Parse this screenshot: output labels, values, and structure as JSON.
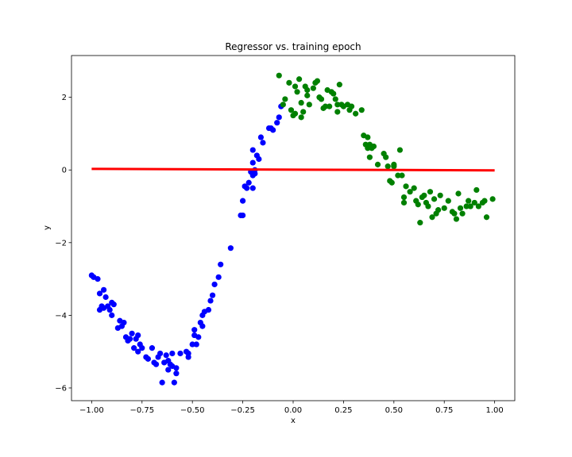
{
  "chart_data": {
    "type": "scatter",
    "title": "Regressor vs. training epoch",
    "xlabel": "x",
    "ylabel": "y",
    "xlim": [
      -1.1,
      1.1
    ],
    "ylim": [
      -6.35,
      3.15
    ],
    "xticks": [
      -1.0,
      -0.75,
      -0.5,
      -0.25,
      0.0,
      0.25,
      0.5,
      0.75,
      1.0
    ],
    "xtick_labels": [
      "−1.00",
      "−0.75",
      "−0.50",
      "−0.25",
      "0.00",
      "0.25",
      "0.50",
      "0.75",
      "1.00"
    ],
    "yticks": [
      -6,
      -4,
      -2,
      0,
      2
    ],
    "ytick_labels": [
      "−6",
      "−4",
      "−2",
      "0",
      "2"
    ],
    "grid": false,
    "series": [
      {
        "color": "#0000ff",
        "points": [
          [
            -1.0,
            -2.9
          ],
          [
            -0.99,
            -2.95
          ],
          [
            -0.97,
            -3.0
          ],
          [
            -0.96,
            -3.4
          ],
          [
            -0.95,
            -3.75
          ],
          [
            -0.96,
            -3.85
          ],
          [
            -0.94,
            -3.8
          ],
          [
            -0.94,
            -3.3
          ],
          [
            -0.93,
            -3.5
          ],
          [
            -0.92,
            -3.75
          ],
          [
            -0.91,
            -3.85
          ],
          [
            -0.9,
            -4.0
          ],
          [
            -0.9,
            -3.65
          ],
          [
            -0.89,
            -3.7
          ],
          [
            -0.87,
            -4.35
          ],
          [
            -0.86,
            -4.15
          ],
          [
            -0.85,
            -4.3
          ],
          [
            -0.84,
            -4.2
          ],
          [
            -0.83,
            -4.6
          ],
          [
            -0.82,
            -4.7
          ],
          [
            -0.81,
            -4.65
          ],
          [
            -0.8,
            -4.5
          ],
          [
            -0.79,
            -4.9
          ],
          [
            -0.78,
            -4.65
          ],
          [
            -0.77,
            -4.55
          ],
          [
            -0.77,
            -5.0
          ],
          [
            -0.76,
            -4.8
          ],
          [
            -0.75,
            -4.9
          ],
          [
            -0.73,
            -5.15
          ],
          [
            -0.72,
            -5.2
          ],
          [
            -0.7,
            -4.9
          ],
          [
            -0.69,
            -5.3
          ],
          [
            -0.68,
            -5.35
          ],
          [
            -0.67,
            -5.15
          ],
          [
            -0.66,
            -5.05
          ],
          [
            -0.65,
            -5.85
          ],
          [
            -0.64,
            -5.3
          ],
          [
            -0.63,
            -5.1
          ],
          [
            -0.62,
            -5.25
          ],
          [
            -0.62,
            -5.5
          ],
          [
            -0.61,
            -5.35
          ],
          [
            -0.6,
            -5.05
          ],
          [
            -0.6,
            -5.4
          ],
          [
            -0.59,
            -5.85
          ],
          [
            -0.58,
            -5.6
          ],
          [
            -0.58,
            -5.45
          ],
          [
            -0.56,
            -5.05
          ],
          [
            -0.53,
            -5.0
          ],
          [
            -0.52,
            -5.05
          ],
          [
            -0.52,
            -5.15
          ],
          [
            -0.5,
            -4.8
          ],
          [
            -0.49,
            -4.55
          ],
          [
            -0.49,
            -4.4
          ],
          [
            -0.48,
            -4.8
          ],
          [
            -0.47,
            -4.6
          ],
          [
            -0.46,
            -4.2
          ],
          [
            -0.45,
            -4.3
          ],
          [
            -0.45,
            -4.0
          ],
          [
            -0.44,
            -3.9
          ],
          [
            -0.42,
            -3.85
          ],
          [
            -0.41,
            -3.6
          ],
          [
            -0.4,
            -3.45
          ],
          [
            -0.39,
            -3.15
          ],
          [
            -0.37,
            -2.95
          ],
          [
            -0.36,
            -2.6
          ],
          [
            -0.31,
            -2.15
          ],
          [
            -0.26,
            -1.25
          ],
          [
            -0.25,
            -0.85
          ],
          [
            -0.25,
            -1.25
          ],
          [
            -0.24,
            -0.45
          ],
          [
            -0.23,
            -0.5
          ],
          [
            -0.22,
            -0.35
          ],
          [
            -0.21,
            -0.05
          ],
          [
            -0.2,
            -0.15
          ],
          [
            -0.2,
            0.2
          ],
          [
            -0.2,
            -0.5
          ],
          [
            -0.19,
            -0.1
          ],
          [
            -0.19,
            0.0
          ],
          [
            -0.2,
            0.55
          ],
          [
            -0.18,
            0.4
          ],
          [
            -0.17,
            0.3
          ],
          [
            -0.16,
            0.9
          ],
          [
            -0.15,
            0.75
          ],
          [
            -0.12,
            1.15
          ],
          [
            -0.11,
            1.15
          ],
          [
            -0.1,
            1.1
          ],
          [
            -0.08,
            1.3
          ],
          [
            -0.07,
            1.45
          ],
          [
            -0.06,
            1.75
          ]
        ]
      },
      {
        "color": "#008000",
        "points": [
          [
            -0.07,
            2.6
          ],
          [
            -0.05,
            1.8
          ],
          [
            -0.04,
            1.95
          ],
          [
            -0.02,
            2.4
          ],
          [
            -0.01,
            1.65
          ],
          [
            0.0,
            1.5
          ],
          [
            0.01,
            1.55
          ],
          [
            0.01,
            2.3
          ],
          [
            0.02,
            2.15
          ],
          [
            0.03,
            2.5
          ],
          [
            0.04,
            1.85
          ],
          [
            0.04,
            1.45
          ],
          [
            0.05,
            1.6
          ],
          [
            0.06,
            2.3
          ],
          [
            0.07,
            2.2
          ],
          [
            0.07,
            2.05
          ],
          [
            0.08,
            1.8
          ],
          [
            0.1,
            2.25
          ],
          [
            0.11,
            2.4
          ],
          [
            0.12,
            2.45
          ],
          [
            0.13,
            2.0
          ],
          [
            0.14,
            1.95
          ],
          [
            0.15,
            1.7
          ],
          [
            0.16,
            1.75
          ],
          [
            0.17,
            2.2
          ],
          [
            0.18,
            1.75
          ],
          [
            0.19,
            2.15
          ],
          [
            0.2,
            2.1
          ],
          [
            0.21,
            1.95
          ],
          [
            0.22,
            1.8
          ],
          [
            0.22,
            1.6
          ],
          [
            0.23,
            2.35
          ],
          [
            0.24,
            1.8
          ],
          [
            0.25,
            1.75
          ],
          [
            0.27,
            1.8
          ],
          [
            0.28,
            1.65
          ],
          [
            0.29,
            1.75
          ],
          [
            0.31,
            1.55
          ],
          [
            0.34,
            1.65
          ],
          [
            0.35,
            0.95
          ],
          [
            0.36,
            0.7
          ],
          [
            0.37,
            0.9
          ],
          [
            0.37,
            0.6
          ],
          [
            0.38,
            0.7
          ],
          [
            0.38,
            0.35
          ],
          [
            0.39,
            0.6
          ],
          [
            0.4,
            0.65
          ],
          [
            0.42,
            0.15
          ],
          [
            0.45,
            0.45
          ],
          [
            0.46,
            0.35
          ],
          [
            0.47,
            0.1
          ],
          [
            0.48,
            -0.3
          ],
          [
            0.49,
            -0.35
          ],
          [
            0.5,
            0.1
          ],
          [
            0.5,
            0.15
          ],
          [
            0.52,
            -0.15
          ],
          [
            0.53,
            0.55
          ],
          [
            0.54,
            -0.15
          ],
          [
            0.55,
            -0.75
          ],
          [
            0.55,
            -0.9
          ],
          [
            0.56,
            -0.45
          ],
          [
            0.58,
            -0.6
          ],
          [
            0.6,
            -0.5
          ],
          [
            0.61,
            -0.85
          ],
          [
            0.62,
            -0.95
          ],
          [
            0.63,
            -1.45
          ],
          [
            0.64,
            -0.75
          ],
          [
            0.65,
            -0.7
          ],
          [
            0.66,
            -0.9
          ],
          [
            0.67,
            -1.0
          ],
          [
            0.68,
            -0.6
          ],
          [
            0.69,
            -1.3
          ],
          [
            0.7,
            -0.8
          ],
          [
            0.71,
            -1.2
          ],
          [
            0.72,
            -1.1
          ],
          [
            0.73,
            -0.7
          ],
          [
            0.75,
            -1.05
          ],
          [
            0.77,
            -0.85
          ],
          [
            0.79,
            -1.15
          ],
          [
            0.8,
            -1.2
          ],
          [
            0.81,
            -1.35
          ],
          [
            0.82,
            -0.65
          ],
          [
            0.83,
            -1.05
          ],
          [
            0.84,
            -1.2
          ],
          [
            0.86,
            -1.0
          ],
          [
            0.87,
            -0.85
          ],
          [
            0.88,
            -1.0
          ],
          [
            0.9,
            -0.9
          ],
          [
            0.91,
            -0.55
          ],
          [
            0.92,
            -1.0
          ],
          [
            0.94,
            -0.9
          ],
          [
            0.95,
            -0.85
          ],
          [
            0.96,
            -1.3
          ],
          [
            0.99,
            -0.8
          ]
        ]
      },
      {
        "color": "#ff0000",
        "type": "line",
        "points": [
          [
            -1.0,
            0.03
          ],
          [
            1.0,
            -0.01
          ]
        ]
      }
    ]
  }
}
